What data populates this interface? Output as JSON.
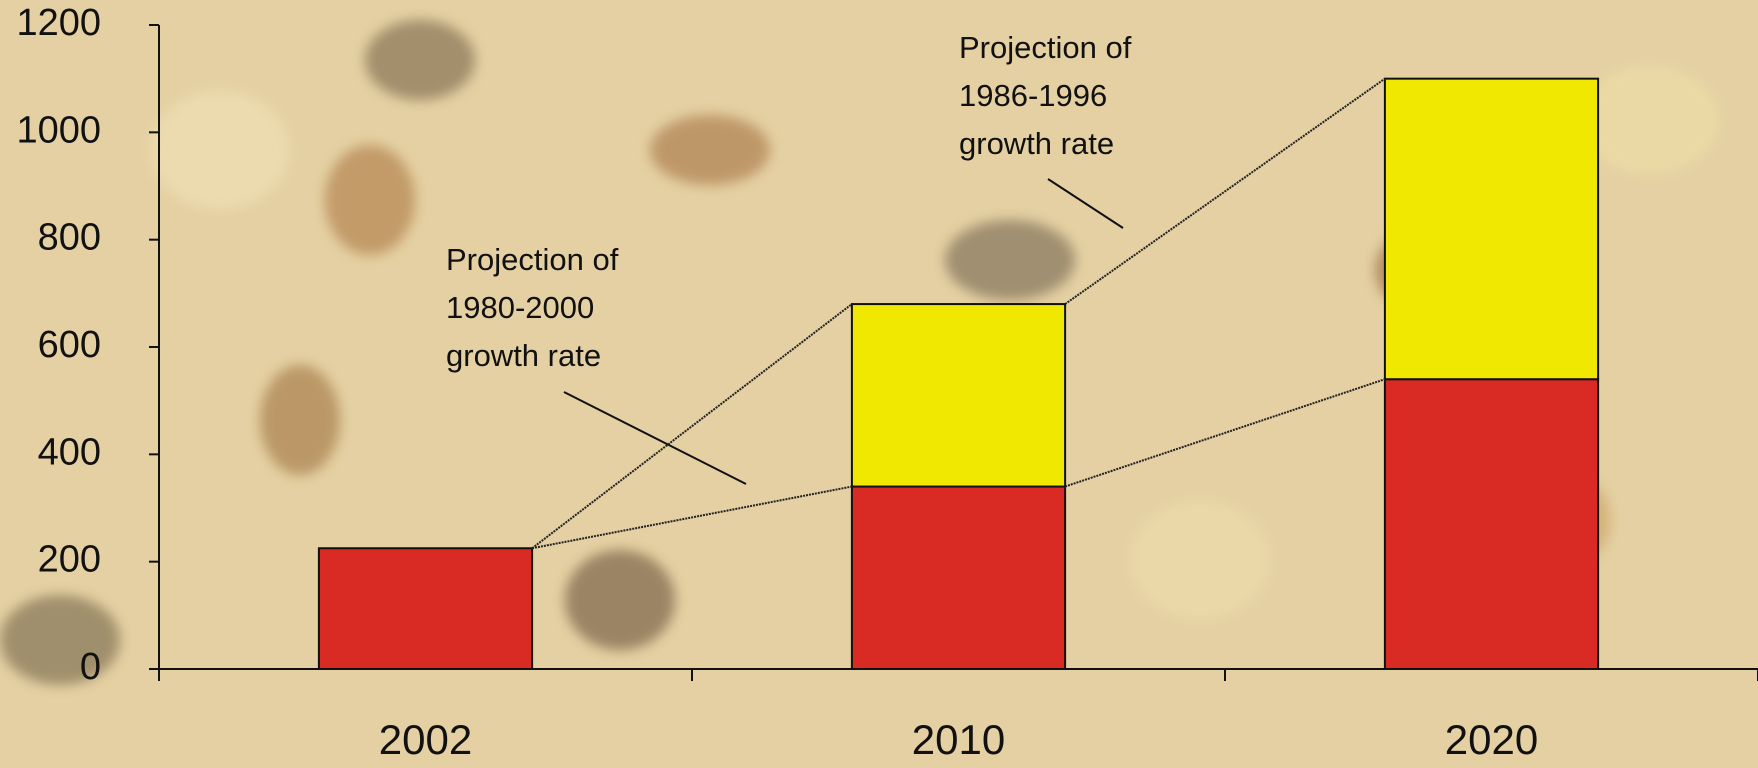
{
  "chart_data": {
    "type": "stacked_bar",
    "categories": [
      "2002",
      "2010",
      "2020"
    ],
    "series": [
      {
        "color": "#d92a24",
        "values": [
          225,
          340,
          540
        ]
      },
      {
        "color": "#f0e800",
        "values": [
          null,
          340,
          560
        ]
      }
    ],
    "ylim": [
      0,
      1200
    ],
    "yticks": [
      0,
      200,
      400,
      600,
      800,
      1000,
      1200
    ],
    "annotations": [
      {
        "text": [
          "Projection of",
          "1980-2000",
          "growth rate"
        ]
      },
      {
        "text": [
          "Projection of",
          "1986-1996",
          "growth rate"
        ]
      }
    ]
  }
}
